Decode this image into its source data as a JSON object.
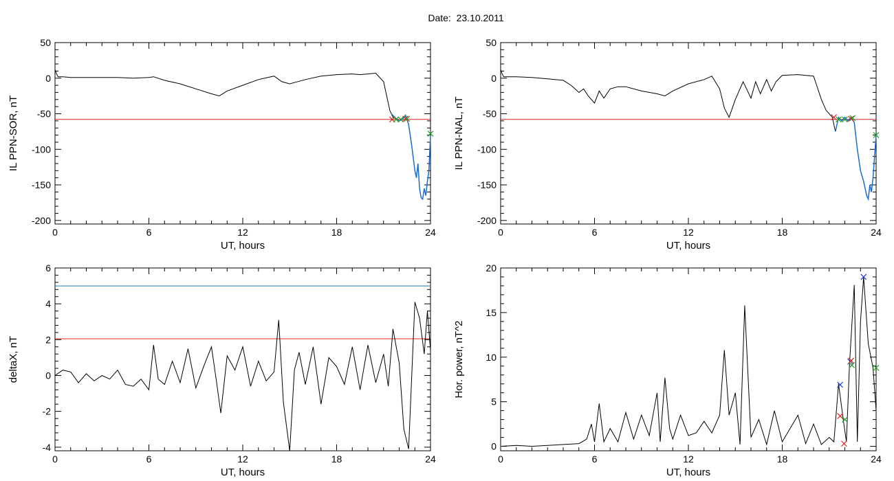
{
  "figure": {
    "title": "Date:  23.10.2011"
  },
  "colors": {
    "trace": "#000000",
    "fit": "#1a6fd6",
    "threshold_red": "#e02020",
    "threshold_blue": "#1a7fb3",
    "marker_red": "#e02020",
    "marker_green": "#22a022",
    "marker_blue": "#2040d0"
  },
  "chart_data": [
    {
      "type": "line",
      "id": "sor",
      "xlabel": "UT, hours",
      "ylabel": "IL PPN-SOR, nT",
      "xlim": [
        0,
        24
      ],
      "ylim": [
        -205,
        50
      ],
      "xticks": [
        0,
        6,
        12,
        18,
        24
      ],
      "yticks": [
        50,
        0,
        -50,
        -100,
        -150,
        -200
      ],
      "threshold": {
        "y": -58,
        "color": "red"
      },
      "series": [
        {
          "x": [
            0,
            0.1,
            0.2,
            0.5,
            1,
            2,
            3,
            4,
            5,
            6,
            6.3,
            7,
            8,
            9,
            10,
            10.5,
            11,
            12,
            13,
            14,
            14.5,
            15,
            16,
            17,
            18,
            19,
            19.5,
            20,
            20.5,
            21,
            21.2,
            21.4,
            21.6,
            21.8,
            22,
            22.2,
            22.4,
            22.6,
            22.8,
            23,
            23.1,
            23.2,
            23.3,
            23.4,
            23.5,
            23.6,
            23.7,
            23.8,
            23.9,
            24
          ],
          "y": [
            12,
            6,
            2,
            2,
            1,
            1,
            1,
            1,
            0,
            1,
            2,
            -3,
            -8,
            -15,
            -22,
            -25,
            -18,
            -10,
            -2,
            3,
            -5,
            -8,
            -2,
            3,
            5,
            6,
            5,
            6,
            7,
            -5,
            -25,
            -45,
            -55,
            -57,
            -60,
            -58,
            -52,
            -65,
            -95,
            -130,
            -140,
            -120,
            -155,
            -168,
            -170,
            -155,
            -165,
            -145,
            -130,
            -80
          ]
        }
      ],
      "fit": {
        "x": [
          21.5,
          21.8,
          22,
          22.2,
          22.4,
          22.6,
          22.8,
          23,
          23.1,
          23.2,
          23.3,
          23.4,
          23.5,
          23.6,
          23.7,
          23.8,
          23.9,
          24
        ],
        "y": [
          -50,
          -57,
          -60,
          -58,
          -52,
          -65,
          -95,
          -130,
          -140,
          -120,
          -155,
          -168,
          -170,
          -155,
          -165,
          -145,
          -130,
          -80
        ]
      },
      "markers": [
        {
          "x": 21.55,
          "y": -58,
          "color": "red"
        },
        {
          "x": 21.8,
          "y": -58,
          "color": "green"
        },
        {
          "x": 22.1,
          "y": -58,
          "color": "green"
        },
        {
          "x": 22.4,
          "y": -57,
          "color": "red"
        },
        {
          "x": 22.5,
          "y": -57,
          "color": "green"
        },
        {
          "x": 24,
          "y": -78,
          "color": "green"
        }
      ]
    },
    {
      "type": "line",
      "id": "nal",
      "xlabel": "UT, hours",
      "ylabel": "IL PPN-NAL, nT",
      "xlim": [
        0,
        24
      ],
      "ylim": [
        -205,
        50
      ],
      "xticks": [
        0,
        6,
        12,
        18,
        24
      ],
      "yticks": [
        50,
        0,
        -50,
        -100,
        -150,
        -200
      ],
      "threshold": {
        "y": -58,
        "color": "red"
      },
      "series": [
        {
          "x": [
            0,
            0.1,
            0.2,
            0.5,
            1,
            2,
            3,
            4,
            4.5,
            5,
            5.3,
            5.6,
            6,
            6.3,
            6.6,
            7,
            7.5,
            8,
            9,
            10,
            10.5,
            11,
            12,
            13,
            13.5,
            14,
            14.3,
            14.6,
            15,
            15.5,
            16,
            16.3,
            16.6,
            17,
            17.3,
            17.6,
            18,
            19,
            20,
            20.5,
            20.8,
            21.2,
            21.4,
            21.6,
            21.8,
            22,
            22.2,
            22.4,
            22.6,
            22.8,
            23,
            23.2,
            23.4,
            23.5,
            23.6,
            23.7,
            23.8,
            24
          ],
          "y": [
            12,
            6,
            2,
            2,
            2,
            1,
            -1,
            -3,
            -10,
            -20,
            -15,
            -25,
            -35,
            -18,
            -28,
            -15,
            -12,
            -12,
            -18,
            -22,
            -25,
            -18,
            -8,
            -2,
            3,
            -15,
            -42,
            -55,
            -30,
            -5,
            -28,
            -5,
            -22,
            -2,
            -18,
            -5,
            4,
            5,
            3,
            -30,
            -45,
            -55,
            -75,
            -55,
            -60,
            -55,
            -60,
            -55,
            -62,
            -100,
            -130,
            -145,
            -165,
            -170,
            -150,
            -160,
            -140,
            -80
          ]
        }
      ],
      "fit": {
        "x": [
          21.4,
          21.6,
          21.8,
          22,
          22.2,
          22.4,
          22.6,
          22.8,
          23,
          23.2,
          23.4,
          23.5,
          23.6,
          23.7,
          23.8,
          24
        ],
        "y": [
          -75,
          -55,
          -60,
          -55,
          -60,
          -55,
          -62,
          -100,
          -130,
          -145,
          -165,
          -170,
          -150,
          -160,
          -140,
          -80
        ]
      },
      "markers": [
        {
          "x": 21.3,
          "y": -55,
          "color": "red"
        },
        {
          "x": 21.6,
          "y": -58,
          "color": "green"
        },
        {
          "x": 22.0,
          "y": -58,
          "color": "green"
        },
        {
          "x": 22.4,
          "y": -57,
          "color": "red"
        },
        {
          "x": 22.5,
          "y": -56,
          "color": "green"
        },
        {
          "x": 24,
          "y": -80,
          "color": "green"
        }
      ]
    },
    {
      "type": "line",
      "id": "deltax",
      "xlabel": "UT, hours",
      "ylabel": "deltaX, nT",
      "xlim": [
        0,
        24
      ],
      "ylim": [
        -4.2,
        6
      ],
      "xticks": [
        0,
        6,
        12,
        18,
        24
      ],
      "yticks": [
        6,
        4,
        2,
        0,
        -2,
        -4
      ],
      "thresholds": [
        {
          "y": 5.0,
          "color": "blue"
        },
        {
          "y": 2.05,
          "color": "red"
        }
      ],
      "series": [
        {
          "x": [
            0,
            0.5,
            1,
            1.5,
            2,
            2.5,
            3,
            3.5,
            4,
            4.5,
            5,
            5.5,
            6,
            6.3,
            6.6,
            7,
            7.5,
            8,
            8.5,
            9,
            9.5,
            10,
            10.3,
            10.6,
            11,
            11.5,
            12,
            12.5,
            13,
            13.5,
            14,
            14.3,
            14.6,
            15,
            15.3,
            15.6,
            16,
            16.5,
            17,
            17.5,
            18,
            18.5,
            19,
            19.5,
            20,
            20.5,
            21,
            21.3,
            21.6,
            22,
            22.3,
            22.6,
            23,
            23.3,
            23.6,
            23.8,
            24
          ],
          "y": [
            0,
            0.3,
            0.2,
            -0.4,
            0.1,
            -0.3,
            0,
            -0.2,
            0.3,
            -0.5,
            -0.6,
            -0.2,
            -0.8,
            1.7,
            -0.2,
            -0.5,
            0.8,
            -0.4,
            1.5,
            -0.7,
            0.5,
            1.6,
            -0.2,
            -2.1,
            1.1,
            0.3,
            1.6,
            -0.6,
            0.8,
            -0.3,
            0.2,
            3.1,
            -1.5,
            -4.2,
            0.3,
            1.3,
            -0.5,
            1.6,
            -1.6,
            1.0,
            0.5,
            -0.5,
            1.6,
            -0.8,
            1.7,
            -0.4,
            1.2,
            -0.6,
            2.6,
            0.7,
            -3.0,
            -4.1,
            4.1,
            3.2,
            1.2,
            3.6,
            1.4
          ]
        }
      ]
    },
    {
      "type": "line",
      "id": "power",
      "xlabel": "UT, hours",
      "ylabel": "Hor. power, nT^2",
      "xlim": [
        0,
        24
      ],
      "ylim": [
        -0.5,
        20
      ],
      "xticks": [
        0,
        6,
        12,
        18,
        24
      ],
      "yticks": [
        20,
        15,
        10,
        5,
        0
      ],
      "series": [
        {
          "x": [
            0,
            1,
            2,
            3,
            4,
            5,
            5.5,
            5.8,
            6,
            6.3,
            6.6,
            7,
            7.5,
            8,
            8.5,
            9,
            9.5,
            10,
            10.2,
            10.5,
            10.8,
            11,
            11.5,
            12,
            12.5,
            13,
            13.5,
            14,
            14.3,
            14.6,
            15,
            15.3,
            15.6,
            16,
            16.5,
            17,
            17.5,
            18,
            18.5,
            19,
            19.5,
            20,
            20.5,
            21,
            21.3,
            21.6,
            21.9,
            22.1,
            22.3,
            22.6,
            22.8,
            23,
            23.2,
            23.5,
            23.8,
            24
          ],
          "y": [
            0,
            0.1,
            0,
            0.1,
            0.2,
            0.3,
            0.8,
            2.5,
            0.5,
            4.8,
            0.5,
            2.0,
            0.5,
            3.8,
            0.8,
            3.5,
            1.2,
            6.0,
            0.5,
            7.7,
            2.0,
            0.8,
            3.5,
            1.2,
            1.5,
            2.8,
            1.5,
            3.5,
            10.8,
            3.5,
            6.0,
            0.2,
            15.8,
            1.0,
            3.0,
            0.2,
            4.0,
            0.5,
            2.0,
            3.5,
            0.3,
            2.5,
            0.2,
            1.0,
            0.5,
            7.0,
            3.0,
            0.5,
            9.2,
            18.1,
            0.5,
            14.0,
            19.0,
            11.5,
            8.8,
            4.0
          ]
        }
      ],
      "markers": [
        {
          "x": 21.7,
          "y": 6.9,
          "color": "blue"
        },
        {
          "x": 21.7,
          "y": 3.4,
          "color": "red"
        },
        {
          "x": 21.95,
          "y": 0.3,
          "color": "red"
        },
        {
          "x": 22.0,
          "y": 3.0,
          "color": "green"
        },
        {
          "x": 22.35,
          "y": 9.5,
          "color": "blue"
        },
        {
          "x": 22.4,
          "y": 9.6,
          "color": "red"
        },
        {
          "x": 22.45,
          "y": 9.1,
          "color": "green"
        },
        {
          "x": 23.2,
          "y": 19.0,
          "color": "blue"
        },
        {
          "x": 24,
          "y": 8.8,
          "color": "green"
        }
      ]
    }
  ]
}
